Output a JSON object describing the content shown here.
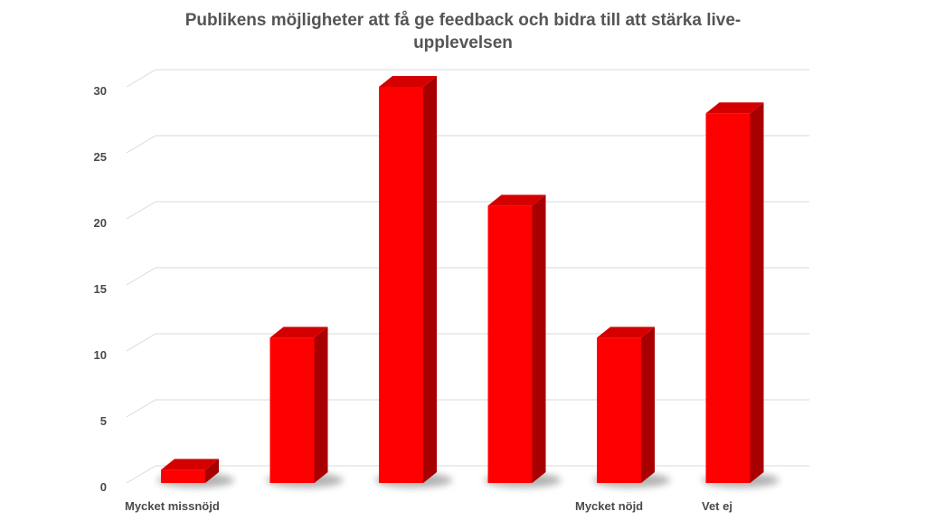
{
  "chart_data": {
    "type": "bar",
    "title_lines": [
      "Publikens möjligheter att få ge feedback och bidra till att stärka live-",
      "upplevelsen"
    ],
    "categories": [
      "Mycket missnöjd",
      "",
      "",
      "",
      "Mycket nöjd",
      "Vet ej"
    ],
    "values": [
      1,
      11,
      30,
      21,
      11,
      28
    ],
    "ylim": [
      0,
      30
    ],
    "yticks": [
      0,
      5,
      10,
      15,
      20,
      25,
      30
    ],
    "grid": true,
    "legend": "none",
    "colors": {
      "bar_front": "#ff0000",
      "bar_top": "#d40000",
      "bar_side": "#a80000",
      "shadow": "#999999"
    }
  }
}
